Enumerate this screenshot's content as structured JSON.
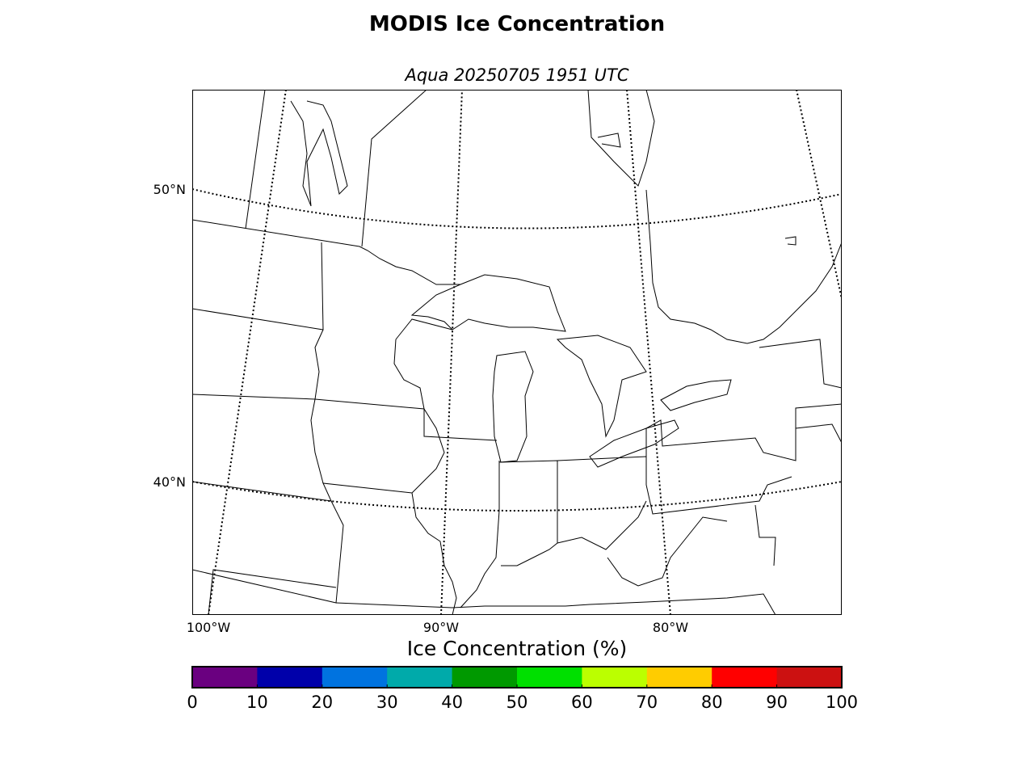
{
  "title": "MODIS Ice Concentration",
  "subtitle": "Aqua 20250705 1951 UTC",
  "map": {
    "lat_labels": [
      "50°N",
      "40°N"
    ],
    "lon_labels": [
      "100°W",
      "90°W",
      "80°W"
    ]
  },
  "colorbar": {
    "label": "Ice Concentration (%)",
    "range": [
      0,
      100
    ],
    "ticks": [
      0,
      10,
      20,
      30,
      40,
      50,
      60,
      70,
      80,
      90,
      100
    ],
    "colors": [
      "#6a0080",
      "#0000aa",
      "#0073e0",
      "#00aaaa",
      "#009900",
      "#00e000",
      "#bbff00",
      "#ffcc00",
      "#ff0000",
      "#cc1111"
    ]
  }
}
